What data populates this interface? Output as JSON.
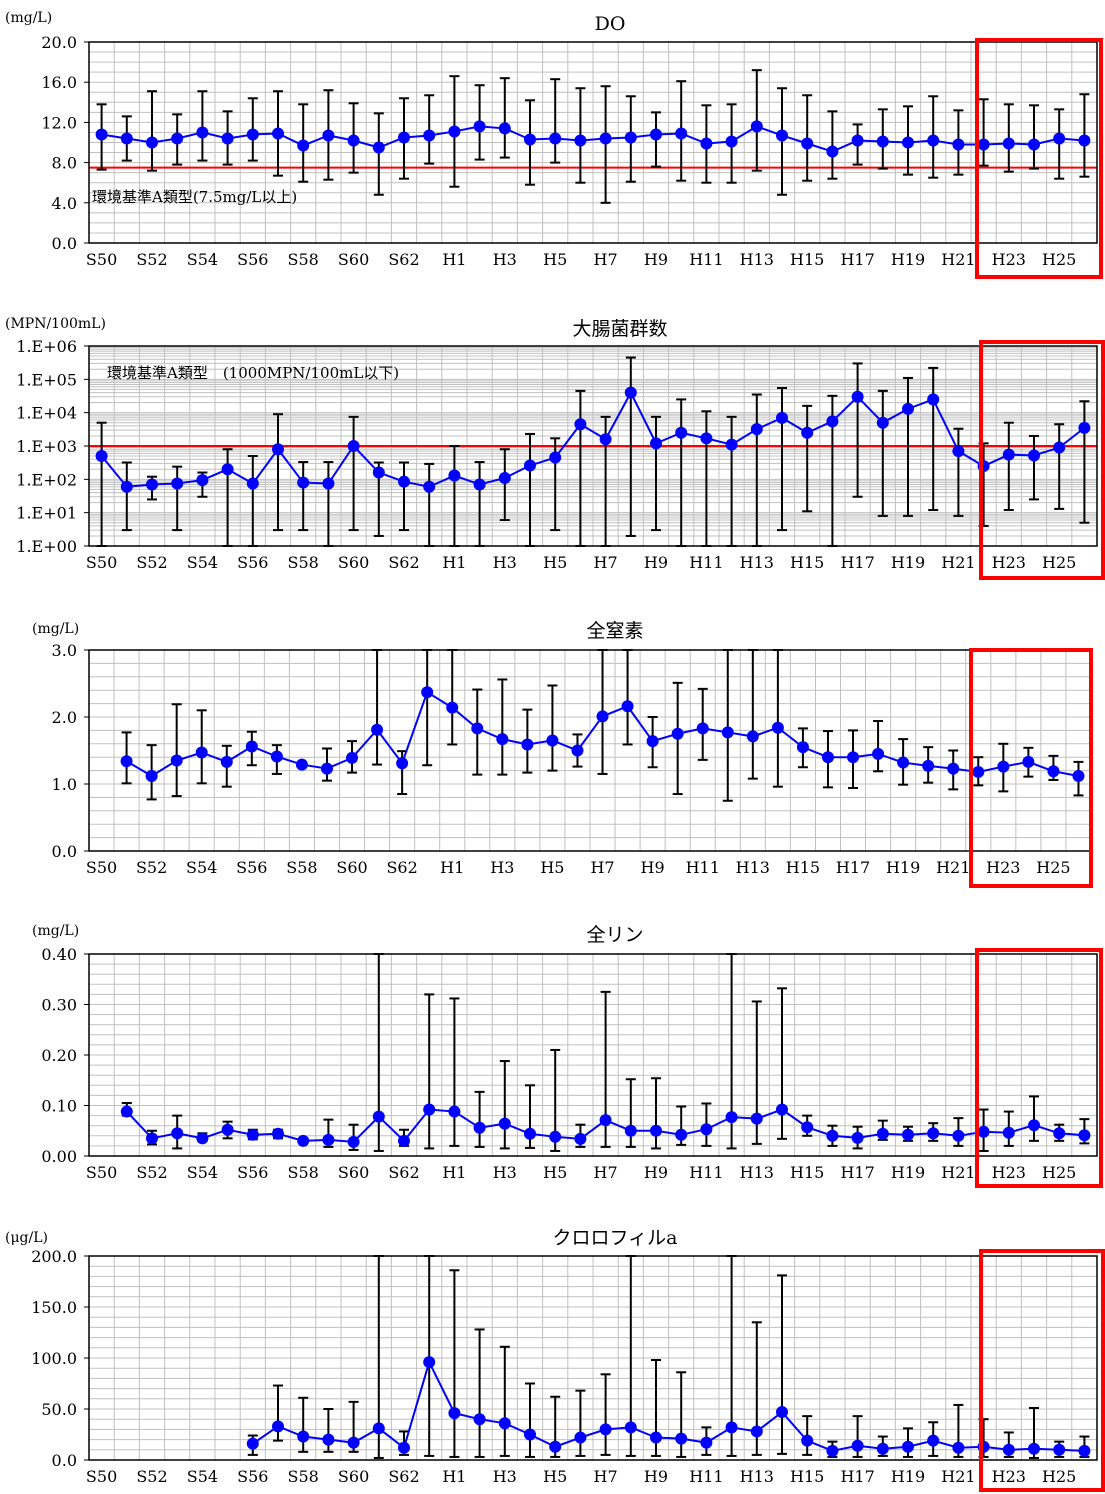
{
  "x_labels": [
    "S50",
    "S52",
    "S54",
    "S56",
    "S58",
    "S60",
    "S62",
    "H1",
    "H3",
    "H5",
    "H7",
    "H9",
    "H11",
    "H13",
    "H15",
    "H17",
    "H19",
    "H21",
    "H23",
    "H25"
  ],
  "colors": {
    "series": "#0000ff",
    "error_bar": "#000000",
    "standard_line": "#ff0000",
    "highlight_box": "#ff0000",
    "grid": "#c0c0c0"
  },
  "chart_data": [
    {
      "type": "line",
      "title": "DO",
      "ylabel": "(mg/L)",
      "y_tick_labels": [
        "0.0",
        "4.0",
        "8.0",
        "12.0",
        "16.0",
        "20.0"
      ],
      "ylim": [
        0,
        20
      ],
      "scale": "linear",
      "annotation": "環境基準A類型(7.5mg/L以上)",
      "reference_line": 7.5,
      "highlight": [
        "H22",
        "H26"
      ],
      "x": [
        "S50",
        "S51",
        "S52",
        "S53",
        "S54",
        "S55",
        "S56",
        "S57",
        "S58",
        "S59",
        "S60",
        "S61",
        "S62",
        "S63",
        "H1",
        "H2",
        "H3",
        "H4",
        "H5",
        "H6",
        "H7",
        "H8",
        "H9",
        "H10",
        "H11",
        "H12",
        "H13",
        "H14",
        "H15",
        "H16",
        "H17",
        "H18",
        "H19",
        "H20",
        "H21",
        "H22",
        "H23",
        "H24",
        "H25",
        "H26"
      ],
      "mean": [
        10.8,
        10.4,
        10.0,
        10.4,
        11.0,
        10.4,
        10.8,
        10.9,
        9.7,
        10.7,
        10.2,
        9.5,
        10.5,
        10.7,
        11.1,
        11.6,
        11.4,
        10.3,
        10.4,
        10.2,
        10.4,
        10.5,
        10.8,
        10.9,
        9.9,
        10.1,
        11.6,
        10.7,
        9.9,
        9.1,
        10.2,
        10.1,
        10.0,
        10.2,
        9.8,
        9.8,
        9.9,
        9.8,
        10.4,
        10.2
      ],
      "max": [
        13.8,
        12.6,
        15.1,
        12.8,
        15.1,
        13.1,
        14.4,
        15.1,
        13.8,
        15.2,
        13.9,
        12.9,
        14.4,
        14.7,
        16.6,
        15.7,
        16.4,
        14.2,
        16.3,
        15.4,
        15.6,
        14.6,
        13.0,
        16.1,
        13.7,
        13.8,
        17.2,
        15.4,
        14.7,
        13.1,
        11.8,
        13.3,
        13.6,
        14.6,
        13.2,
        14.3,
        13.8,
        13.7,
        13.3,
        14.8
      ],
      "min": [
        7.3,
        8.2,
        7.2,
        7.8,
        8.2,
        7.8,
        8.2,
        6.7,
        6.1,
        6.3,
        7.0,
        4.8,
        6.4,
        7.9,
        5.6,
        8.3,
        8.5,
        5.8,
        8.0,
        6.0,
        4.0,
        6.1,
        7.6,
        6.2,
        6.0,
        6.0,
        7.2,
        4.8,
        6.2,
        6.4,
        7.8,
        7.4,
        6.8,
        6.5,
        6.8,
        7.7,
        7.1,
        7.4,
        6.4,
        6.6
      ]
    },
    {
      "type": "line",
      "title": "大腸菌群数",
      "ylabel": "(MPN/100mL)",
      "y_tick_labels": [
        "1.E+00",
        "1.E+01",
        "1.E+02",
        "1.E+03",
        "1.E+04",
        "1.E+05",
        "1.E+06"
      ],
      "ylim": [
        1,
        1000000
      ],
      "scale": "log",
      "annotation": "環境基準A類型　(1000MPN/100mL以下)",
      "reference_line": 1000,
      "highlight": [
        "H22",
        "H26"
      ],
      "x": [
        "S50",
        "S51",
        "S52",
        "S53",
        "S54",
        "S55",
        "S56",
        "S57",
        "S58",
        "S59",
        "S60",
        "S61",
        "S62",
        "S63",
        "H1",
        "H2",
        "H3",
        "H4",
        "H5",
        "H6",
        "H7",
        "H8",
        "H9",
        "H10",
        "H11",
        "H12",
        "H13",
        "H14",
        "H15",
        "H16",
        "H17",
        "H18",
        "H19",
        "H20",
        "H21",
        "H22",
        "H23",
        "H24",
        "H25",
        "H26"
      ],
      "mean": [
        500,
        60,
        70,
        75,
        95,
        200,
        75,
        800,
        80,
        75,
        1000,
        160,
        85,
        60,
        130,
        70,
        110,
        260,
        450,
        4500,
        1600,
        40000,
        1200,
        2500,
        1700,
        1100,
        3200,
        7000,
        2500,
        5500,
        30000,
        5000,
        13000,
        25000,
        700,
        250,
        550,
        520,
        900,
        3500
      ],
      "max": [
        5000,
        320,
        120,
        240,
        160,
        800,
        500,
        9000,
        330,
        330,
        7500,
        320,
        320,
        290,
        1000,
        330,
        800,
        2300,
        1700,
        45000,
        7500,
        450000,
        7500,
        25000,
        11000,
        7500,
        35000,
        55000,
        16000,
        32000,
        300000,
        45000,
        110000,
        220000,
        3300,
        1200,
        5000,
        2000,
        4500,
        22000
      ],
      "min": [
        1,
        3,
        25,
        3,
        30,
        1,
        1,
        3,
        3,
        1,
        3,
        2,
        3,
        1,
        1,
        1,
        6,
        1,
        3,
        1,
        1,
        2,
        3,
        1,
        1,
        1,
        1,
        3,
        11,
        1,
        30,
        8,
        8,
        12,
        8,
        4,
        12,
        25,
        13,
        5
      ]
    },
    {
      "type": "line",
      "title": "全窒素",
      "ylabel": "(mg/L)",
      "y_tick_labels": [
        "0.0",
        "1.0",
        "2.0",
        "3.0"
      ],
      "ylim": [
        0,
        3
      ],
      "scale": "linear",
      "highlight": [
        "H22",
        "H26"
      ],
      "x": [
        "S51",
        "S52",
        "S53",
        "S54",
        "S55",
        "S56",
        "S57",
        "S58",
        "S59",
        "S60",
        "S61",
        "S62",
        "S63",
        "H1",
        "H2",
        "H3",
        "H4",
        "H5",
        "H6",
        "H7",
        "H8",
        "H9",
        "H10",
        "H11",
        "H12",
        "H13",
        "H14",
        "H15",
        "H16",
        "H17",
        "H18",
        "H19",
        "H20",
        "H21",
        "H22",
        "H23",
        "H24",
        "H25",
        "H26"
      ],
      "mean": [
        1.34,
        1.12,
        1.35,
        1.47,
        1.33,
        1.56,
        1.41,
        1.29,
        1.23,
        1.39,
        1.81,
        1.31,
        2.37,
        2.14,
        1.83,
        1.67,
        1.59,
        1.65,
        1.5,
        2.01,
        2.16,
        1.64,
        1.75,
        1.83,
        1.77,
        1.71,
        1.84,
        1.55,
        1.4,
        1.4,
        1.45,
        1.32,
        1.27,
        1.23,
        1.18,
        1.26,
        1.33,
        1.19,
        1.12
      ],
      "max": [
        1.77,
        1.58,
        2.19,
        2.1,
        1.57,
        1.78,
        1.58,
        1.3,
        1.53,
        1.64,
        3.0,
        1.49,
        3.0,
        3.0,
        2.41,
        2.56,
        2.11,
        2.47,
        1.74,
        3.0,
        3.0,
        2.0,
        2.51,
        2.42,
        3.0,
        3.0,
        3.0,
        1.83,
        1.79,
        1.8,
        1.94,
        1.67,
        1.55,
        1.5,
        1.4,
        1.6,
        1.54,
        1.42,
        1.33
      ],
      "min": [
        1.01,
        0.77,
        0.82,
        1.01,
        0.96,
        1.28,
        1.15,
        1.28,
        1.05,
        1.17,
        1.29,
        0.85,
        1.28,
        1.59,
        1.14,
        1.14,
        1.17,
        1.2,
        1.26,
        1.15,
        1.59,
        1.25,
        0.85,
        1.36,
        0.75,
        1.08,
        0.96,
        1.25,
        0.95,
        0.94,
        1.19,
        0.99,
        1.02,
        0.92,
        0.98,
        0.89,
        1.11,
        1.06,
        0.83
      ]
    },
    {
      "type": "line",
      "title": "全リン",
      "ylabel": "(mg/L)",
      "y_tick_labels": [
        "0.00",
        "0.10",
        "0.20",
        "0.30",
        "0.40"
      ],
      "ylim": [
        0,
        0.4
      ],
      "scale": "linear",
      "highlight": [
        "H22",
        "H26"
      ],
      "x": [
        "S51",
        "S52",
        "S53",
        "S54",
        "S55",
        "S56",
        "S57",
        "S58",
        "S59",
        "S60",
        "S61",
        "S62",
        "S63",
        "H1",
        "H2",
        "H3",
        "H4",
        "H5",
        "H6",
        "H7",
        "H8",
        "H9",
        "H10",
        "H11",
        "H12",
        "H13",
        "H14",
        "H15",
        "H16",
        "H17",
        "H18",
        "H19",
        "H20",
        "H21",
        "H22",
        "H23",
        "H24",
        "H25",
        "H26"
      ],
      "mean": [
        0.088,
        0.035,
        0.045,
        0.035,
        0.052,
        0.042,
        0.044,
        0.03,
        0.032,
        0.028,
        0.078,
        0.03,
        0.092,
        0.088,
        0.056,
        0.064,
        0.044,
        0.038,
        0.034,
        0.071,
        0.05,
        0.05,
        0.042,
        0.053,
        0.077,
        0.074,
        0.092,
        0.057,
        0.04,
        0.036,
        0.044,
        0.042,
        0.045,
        0.04,
        0.048,
        0.046,
        0.061,
        0.045,
        0.041
      ],
      "max": [
        0.105,
        0.05,
        0.08,
        0.045,
        0.068,
        0.052,
        0.052,
        0.032,
        0.072,
        0.062,
        0.4,
        0.052,
        0.32,
        0.312,
        0.127,
        0.188,
        0.14,
        0.21,
        0.062,
        0.325,
        0.152,
        0.154,
        0.098,
        0.104,
        0.4,
        0.306,
        0.332,
        0.08,
        0.06,
        0.058,
        0.07,
        0.058,
        0.065,
        0.075,
        0.092,
        0.088,
        0.118,
        0.062,
        0.073
      ],
      "min": [
        0.08,
        0.023,
        0.015,
        0.03,
        0.035,
        0.033,
        0.035,
        0.026,
        0.018,
        0.012,
        0.01,
        0.02,
        0.015,
        0.02,
        0.018,
        0.015,
        0.016,
        0.01,
        0.018,
        0.018,
        0.018,
        0.015,
        0.022,
        0.02,
        0.015,
        0.024,
        0.034,
        0.04,
        0.02,
        0.015,
        0.032,
        0.03,
        0.03,
        0.02,
        0.01,
        0.02,
        0.03,
        0.03,
        0.025
      ]
    },
    {
      "type": "line",
      "title": "クロロフィルa",
      "ylabel": "(μg/L)",
      "y_tick_labels": [
        "0.0",
        "50.0",
        "100.0",
        "150.0",
        "200.0"
      ],
      "ylim": [
        0,
        200
      ],
      "scale": "linear",
      "highlight": [
        "H22",
        "H26"
      ],
      "x": [
        "S56",
        "S57",
        "S58",
        "S59",
        "S60",
        "S61",
        "S62",
        "S63",
        "H1",
        "H2",
        "H3",
        "H4",
        "H5",
        "H6",
        "H7",
        "H8",
        "H9",
        "H10",
        "H11",
        "H12",
        "H13",
        "H14",
        "H15",
        "H16",
        "H17",
        "H18",
        "H19",
        "H20",
        "H21",
        "H22",
        "H23",
        "H24",
        "H25",
        "H26"
      ],
      "mean": [
        16,
        33,
        23,
        20,
        17,
        31,
        12,
        96,
        46,
        40,
        36,
        25,
        13,
        22,
        30,
        32,
        22,
        21,
        17,
        32,
        28,
        47,
        19,
        9,
        14,
        11,
        13,
        19,
        12,
        13,
        10,
        11,
        10,
        9
      ],
      "max": [
        24,
        73,
        61,
        50,
        57,
        200,
        28,
        200,
        186,
        128,
        111,
        75,
        62,
        68,
        84,
        200,
        98,
        86,
        32,
        200,
        135,
        181,
        43,
        18,
        43,
        23,
        31,
        37,
        54,
        40,
        27,
        51,
        18,
        23
      ],
      "min": [
        5,
        19,
        8,
        8,
        8,
        2,
        5,
        4,
        3,
        3,
        4,
        3,
        3,
        4,
        5,
        4,
        4,
        3,
        5,
        4,
        5,
        6,
        5,
        3,
        3,
        4,
        3,
        4,
        3,
        3,
        3,
        2,
        3,
        3
      ]
    }
  ]
}
